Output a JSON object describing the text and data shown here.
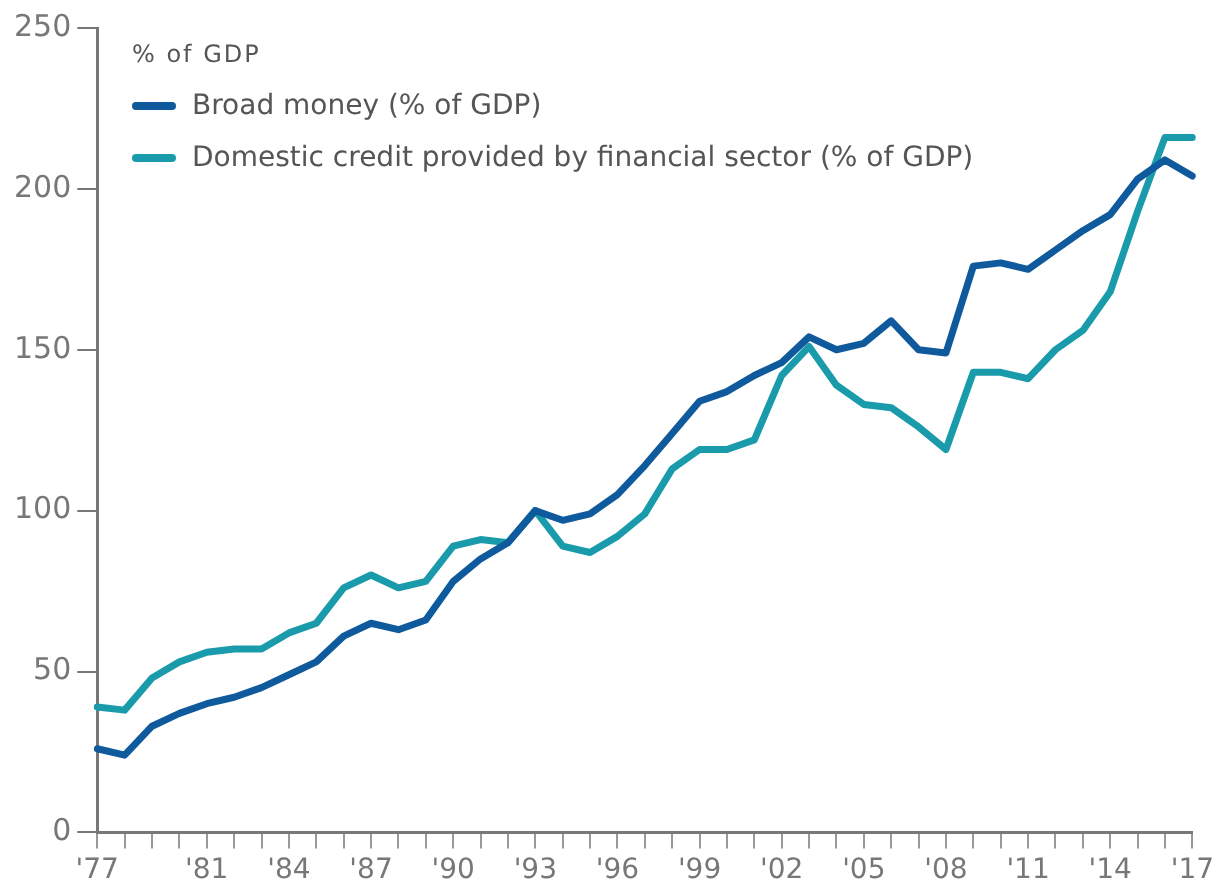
{
  "chart_data": {
    "type": "line",
    "ylabel": "% of GDP",
    "categories": [
      "'77",
      null,
      null,
      null,
      "'81",
      null,
      null,
      "'84",
      null,
      null,
      "'87",
      null,
      null,
      "'90",
      null,
      null,
      "'93",
      null,
      null,
      "'96",
      null,
      null,
      "'99",
      null,
      null,
      "'02",
      null,
      null,
      "'05",
      null,
      null,
      "'08",
      null,
      null,
      "'11",
      null,
      null,
      "'14",
      null,
      null,
      "'17"
    ],
    "series": [
      {
        "name": "Broad money (% of GDP)",
        "color": "#0f5a9c",
        "values": [
          26,
          24,
          33,
          37,
          40,
          42,
          45,
          49,
          53,
          61,
          65,
          63,
          66,
          78,
          85,
          90,
          100,
          97,
          99,
          105,
          114,
          124,
          134,
          137,
          142,
          146,
          154,
          150,
          152,
          159,
          150,
          149,
          176,
          177,
          175,
          181,
          187,
          192,
          203,
          209,
          204
        ]
      },
      {
        "name": "Domestic credit provided by financial sector (% of GDP)",
        "color": "#1a9bab",
        "values": [
          39,
          38,
          48,
          53,
          56,
          57,
          57,
          62,
          65,
          76,
          80,
          76,
          78,
          89,
          91,
          90,
          100,
          89,
          87,
          92,
          99,
          113,
          119,
          119,
          122,
          142,
          151,
          139,
          133,
          132,
          126,
          119,
          143,
          143,
          141,
          150,
          156,
          168,
          193,
          216,
          216
        ]
      }
    ],
    "ylim": [
      0,
      250
    ],
    "yticks": [
      0,
      50,
      100,
      150,
      200,
      250
    ],
    "grid": false,
    "legend": "top left",
    "marker": "none",
    "line_style": "solid"
  }
}
